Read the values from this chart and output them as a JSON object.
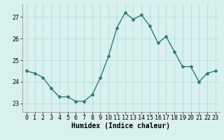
{
  "x": [
    0,
    1,
    2,
    3,
    4,
    5,
    6,
    7,
    8,
    9,
    10,
    11,
    12,
    13,
    14,
    15,
    16,
    17,
    18,
    19,
    20,
    21,
    22,
    23
  ],
  "y": [
    24.5,
    24.4,
    24.2,
    23.7,
    23.3,
    23.3,
    23.1,
    23.1,
    23.4,
    24.2,
    25.2,
    26.5,
    27.2,
    26.9,
    27.1,
    26.6,
    25.8,
    26.1,
    25.4,
    24.7,
    24.7,
    24.0,
    24.4,
    24.5
  ],
  "line_color": "#2e7d6e",
  "marker": "D",
  "marker_size": 2,
  "line_width": 1.0,
  "bg_color": "#d8f0ee",
  "grid_color": "#b0d8d4",
  "xlabel": "Humidex (Indice chaleur)",
  "xlabel_fontsize": 7,
  "tick_fontsize": 6,
  "ylim": [
    22.6,
    27.6
  ],
  "yticks": [
    23,
    24,
    25,
    26,
    27
  ],
  "xticks": [
    0,
    1,
    2,
    3,
    4,
    5,
    6,
    7,
    8,
    9,
    10,
    11,
    12,
    13,
    14,
    15,
    16,
    17,
    18,
    19,
    20,
    21,
    22,
    23
  ]
}
